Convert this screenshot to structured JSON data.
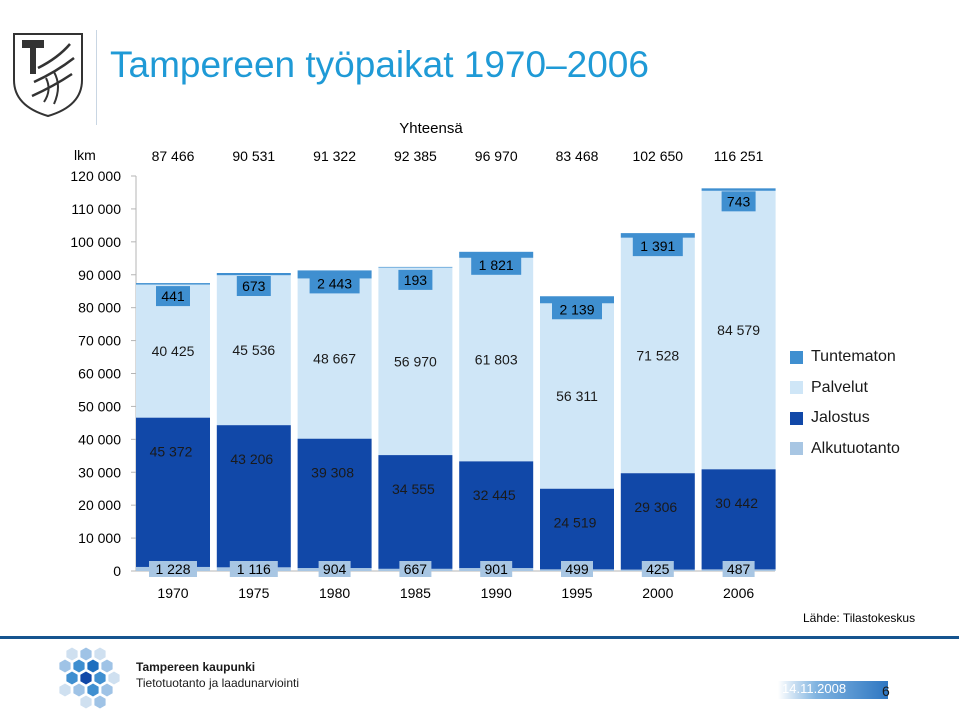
{
  "header": {
    "title": "Tampereen työpaikat 1970–2006"
  },
  "footer": {
    "organization": "Tampereen kaupunki",
    "department": "Tietotuotanto ja laadunarviointi",
    "date": "14.11.2008",
    "page": "6",
    "source": "Lähde: Tilastokeskus"
  },
  "chart_data": {
    "type": "bar",
    "stacked": true,
    "title": "Yhteensä",
    "ylabel": "lkm",
    "ylim": [
      0,
      120000
    ],
    "yticks": [
      0,
      10000,
      20000,
      30000,
      40000,
      50000,
      60000,
      70000,
      80000,
      90000,
      100000,
      110000,
      120000
    ],
    "ytick_labels": [
      "0",
      "10 000",
      "20 000",
      "30 000",
      "40 000",
      "50 000",
      "60 000",
      "70 000",
      "80 000",
      "90 000",
      "100 000",
      "110 000",
      "120 000"
    ],
    "grid": false,
    "legend": "right",
    "categories": [
      "1970",
      "1975",
      "1980",
      "1985",
      "1990",
      "1995",
      "2000",
      "2006"
    ],
    "totals": [
      87466,
      90531,
      91322,
      92385,
      96970,
      83468,
      102650,
      116251
    ],
    "total_labels": [
      "87 466",
      "90 531",
      "91 322",
      "92 385",
      "96 970",
      "83 468",
      "102 650",
      "116 251"
    ],
    "series": [
      {
        "name": "Alkutuotanto",
        "color": "#a8c6e3",
        "values": [
          1228,
          1116,
          904,
          667,
          901,
          499,
          425,
          487
        ],
        "labels": [
          "1 228",
          "1 116",
          "904",
          "667",
          "901",
          "499",
          "425",
          "487"
        ]
      },
      {
        "name": "Jalostus",
        "color": "#1148a8",
        "values": [
          45372,
          43206,
          39308,
          34555,
          32445,
          24519,
          29306,
          30442
        ],
        "labels": [
          "45 372",
          "43 206",
          "39 308",
          "34 555",
          "32 445",
          "24 519",
          "29 306",
          "30 442"
        ]
      },
      {
        "name": "Palvelut",
        "color": "#cfe6f7",
        "values": [
          40425,
          45536,
          48667,
          56970,
          61803,
          56311,
          71528,
          84579
        ],
        "labels": [
          "40 425",
          "45 536",
          "48 667",
          "56 970",
          "61 803",
          "56 311",
          "71 528",
          "84 579"
        ]
      },
      {
        "name": "Tuntematon",
        "color": "#3f8fd0",
        "values": [
          441,
          673,
          2443,
          193,
          1821,
          2139,
          1391,
          743
        ],
        "labels": [
          "441",
          "673",
          "2 443",
          "193",
          "1 821",
          "2 139",
          "1 391",
          "743"
        ]
      }
    ]
  }
}
